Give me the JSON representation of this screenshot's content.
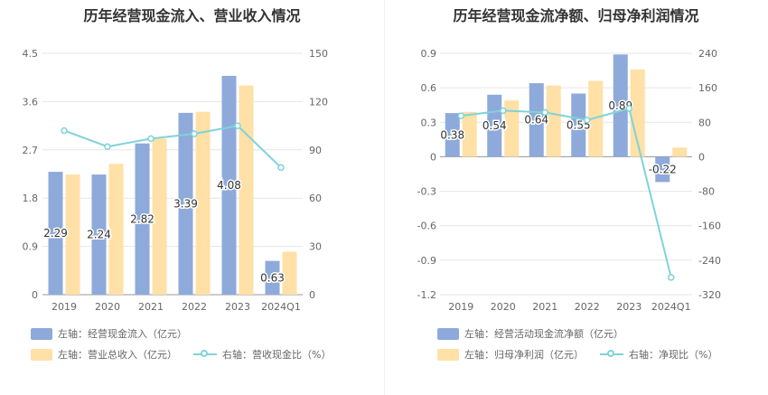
{
  "charts": [
    {
      "title": "历年经营现金流入、营业收入情况",
      "legend": [
        {
          "label": "左轴：经营现金流入（亿元）",
          "kind": "bar",
          "color": "#8eaadb"
        },
        {
          "label": "左轴：营业总收入（亿元）",
          "kind": "bar",
          "color": "#ffe0a6"
        },
        {
          "label": "右轴：营收现金比（%）",
          "kind": "line",
          "color": "#7fd3d8"
        }
      ]
    },
    {
      "title": "历年经营现金流净额、归母净利润情况",
      "legend": [
        {
          "label": "左轴：经营活动现金流净额（亿元）",
          "kind": "bar",
          "color": "#8eaadb"
        },
        {
          "label": "左轴：归母净利润（亿元）",
          "kind": "bar",
          "color": "#ffe0a6"
        },
        {
          "label": "右轴：净现比（%）",
          "kind": "line",
          "color": "#7fd3d8"
        }
      ]
    }
  ],
  "chart_data": [
    {
      "type": "bar",
      "title": "历年经营现金流入、营业收入情况",
      "categories": [
        "2019",
        "2020",
        "2021",
        "2022",
        "2023",
        "2024Q1"
      ],
      "left_axis": {
        "ticks": [
          "0",
          "0.9",
          "1.8",
          "2.7",
          "3.6",
          "4.5"
        ],
        "lim": [
          0,
          4.5
        ]
      },
      "right_axis": {
        "ticks": [
          "0",
          "30",
          "60",
          "90",
          "120",
          "150"
        ],
        "lim": [
          0,
          150
        ]
      },
      "series": [
        {
          "name": "左轴：经营现金流入（亿元）",
          "axis": "left",
          "kind": "bar",
          "color": "#8eaadb",
          "values": [
            2.29,
            2.24,
            2.82,
            3.39,
            4.08,
            0.63
          ],
          "labels": [
            "2.29",
            "2.24",
            "2.82",
            "3.39",
            "4.08",
            "0.63"
          ]
        },
        {
          "name": "左轴：营业总收入（亿元）",
          "axis": "left",
          "kind": "bar",
          "color": "#ffe0a6",
          "values": [
            2.24,
            2.44,
            2.91,
            3.41,
            3.9,
            0.8
          ]
        },
        {
          "name": "右轴：营收现金比（%）",
          "axis": "right",
          "kind": "line",
          "color": "#7fd3d8",
          "values": [
            102,
            92,
            97,
            100,
            105,
            79
          ]
        }
      ],
      "grid": true,
      "legend_position": "bottom"
    },
    {
      "type": "bar",
      "title": "历年经营现金流净额、归母净利润情况",
      "categories": [
        "2019",
        "2020",
        "2021",
        "2022",
        "2023",
        "2024Q1"
      ],
      "left_axis": {
        "ticks": [
          "-1.2",
          "-0.9",
          "-0.6",
          "-0.3",
          "0",
          "0.3",
          "0.6",
          "0.9"
        ],
        "lim": [
          -1.2,
          0.9
        ]
      },
      "right_axis": {
        "ticks": [
          "-320",
          "-240",
          "-160",
          "-80",
          "0",
          "80",
          "160",
          "240"
        ],
        "lim": [
          -320,
          240
        ]
      },
      "series": [
        {
          "name": "左轴：经营活动现金流净额（亿元）",
          "axis": "left",
          "kind": "bar",
          "color": "#8eaadb",
          "values": [
            0.38,
            0.54,
            0.64,
            0.55,
            0.89,
            -0.22
          ],
          "labels": [
            "0.38",
            "0.54",
            "0.64",
            "0.55",
            "0.89",
            "-0.22"
          ]
        },
        {
          "name": "左轴：归母净利润（亿元）",
          "axis": "left",
          "kind": "bar",
          "color": "#ffe0a6",
          "values": [
            0.39,
            0.49,
            0.62,
            0.66,
            0.76,
            0.08
          ]
        },
        {
          "name": "右轴：净现比（%）",
          "axis": "right",
          "kind": "line",
          "color": "#7fd3d8",
          "values": [
            95,
            107,
            103,
            85,
            112,
            -280
          ]
        }
      ],
      "grid": true,
      "legend_position": "bottom"
    }
  ]
}
